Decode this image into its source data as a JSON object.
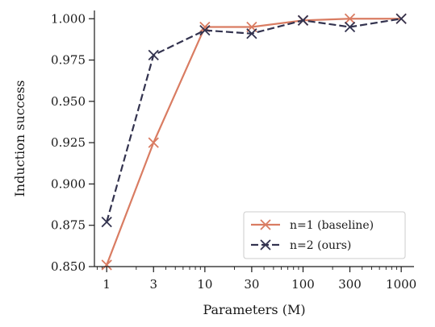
{
  "chart_data": {
    "type": "line",
    "xlabel": "Parameters (M)",
    "ylabel": "Induction success",
    "x_scale": "log",
    "xlim": [
      0.75,
      1350
    ],
    "ylim": [
      0.85,
      1.005
    ],
    "x_ticks": [
      1,
      3,
      10,
      30,
      100,
      300,
      1000
    ],
    "x_tick_labels": [
      "1",
      "3",
      "10",
      "30",
      "100",
      "300",
      "1000"
    ],
    "y_ticks": [
      0.85,
      0.875,
      0.9,
      0.925,
      0.95,
      0.975,
      1.0
    ],
    "y_tick_labels": [
      "0.850",
      "0.875",
      "0.900",
      "0.925",
      "0.950",
      "0.975",
      "1.000"
    ],
    "grid": false,
    "legend_position": "lower-right",
    "series": [
      {
        "name": "n=1 (baseline)",
        "color": "#d97c62",
        "line_style": "solid",
        "marker": "x",
        "x": [
          1,
          3,
          10,
          30,
          100,
          300,
          1000
        ],
        "y": [
          0.851,
          0.925,
          0.995,
          0.995,
          0.999,
          1.0,
          1.0
        ]
      },
      {
        "name": "n=2 (ours)",
        "color": "#33334f",
        "line_style": "dashed",
        "marker": "x",
        "x": [
          1,
          3,
          10,
          30,
          100,
          300,
          1000
        ],
        "y": [
          0.877,
          0.978,
          0.993,
          0.991,
          0.999,
          0.995,
          1.0
        ]
      }
    ]
  }
}
